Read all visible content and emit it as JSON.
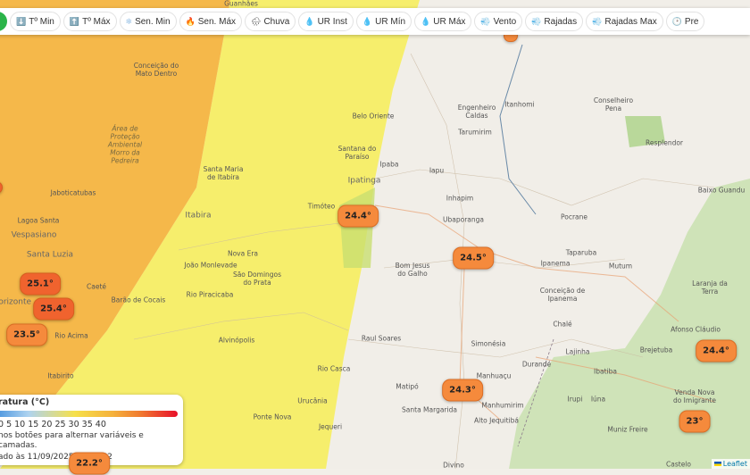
{
  "toolbar": {
    "buttons": [
      {
        "icon": "⬇️",
        "label": "Tº Min"
      },
      {
        "icon": "⬆️",
        "label": "Tº Máx"
      },
      {
        "icon": "❄",
        "label": "Sen. Min"
      },
      {
        "icon": "🔥",
        "label": "Sen. Máx"
      },
      {
        "icon": "🌧",
        "label": "Chuva"
      },
      {
        "icon": "💧",
        "label": "UR Inst"
      },
      {
        "icon": "💧",
        "label": "UR Mín"
      },
      {
        "icon": "💧",
        "label": "UR Máx"
      },
      {
        "icon": "💨",
        "label": "Vento"
      },
      {
        "icon": "💨",
        "label": "Rajadas"
      },
      {
        "icon": "💨",
        "label": "Rajadas Max"
      },
      {
        "icon": "🕑",
        "label": "Pre"
      }
    ]
  },
  "markers": [
    "24.4°",
    "24.5°",
    "25.1°",
    "25.4°",
    "23.5°",
    "24.3°",
    "24.4°",
    "23°",
    "22.2°"
  ],
  "places": [
    "Guanhães",
    "Conceição do Mato Dentro",
    "Área de Proteção Ambiental Morro da Pedreira",
    "Jaboticatubas",
    "Lagoa Santa",
    "Vespasiano",
    "Santa Luzia",
    "Belo Horizonte",
    "Rio Acima",
    "Itabirito",
    "Caeté",
    "Santa Maria de Itabira",
    "Itabira",
    "Nova Era",
    "João Monlevade",
    "São Domingos do Prata",
    "Barão de Cocais",
    "Rio Piracicaba",
    "Alvinópolis",
    "Ponte Nova",
    "Urucânia",
    "Jequeri",
    "Rio Casca",
    "Belo Oriente",
    "Santana do Paraíso",
    "Ipatinga",
    "Timóteo",
    "Ipaba",
    "Iapu",
    "Inhapim",
    "Ubaporanga",
    "Bom Jesus do Galho",
    "Raul Soares",
    "Matipó",
    "Santa Margarida",
    "Simonésia",
    "Manhuaçu",
    "Manhumirim",
    "Alto Jequitibá",
    "Durandé",
    "Lajinha",
    "Chalé",
    "Conceição de Ipanema",
    "Ipanema",
    "Taparuba",
    "Mutum",
    "Pocrane",
    "Engenheiro Caldas",
    "Tarumirim",
    "Itanhomi",
    "Conselheiro Pena",
    "Resplendor",
    "Baixo Guandu",
    "Laranja da Terra",
    "Afonso Cláudio",
    "Brejetuba",
    "Ibatiba",
    "Iúna",
    "Irupi",
    "Venda Nova do Imigrante",
    "Muniz Freire",
    "Castelo",
    "Divino"
  ],
  "legend": {
    "title": "ratura (°C)",
    "scale": "0 5 10 15 20 25 30 35 40",
    "hint": "nos botões para alternar variáveis e camadas.",
    "updated": "ado às 11/09/2025 10:21:52"
  },
  "attribution": "Leaflet",
  "colors": {
    "orange_zone": "#f5b94a",
    "yellow_zone": "#f7ef6a",
    "marker": "#f58a3c",
    "marker_hot": "#f0632e"
  }
}
